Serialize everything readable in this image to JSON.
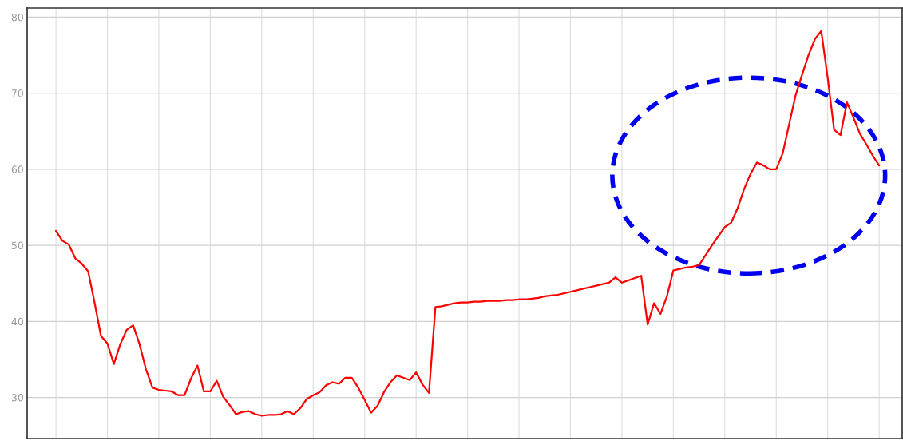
{
  "chart_data": {
    "type": "line",
    "grid": true,
    "marker": "none",
    "line_style": "solid",
    "ylim": [
      24.6,
      81.2
    ],
    "yticks": [
      30,
      40,
      50,
      60,
      70,
      80
    ],
    "categories": [
      null,
      null,
      null,
      null,
      null,
      null,
      null,
      null,
      null,
      null,
      null,
      null,
      null,
      null,
      null,
      null,
      null,
      null,
      null,
      null,
      null,
      null,
      null,
      null,
      null,
      null,
      null,
      null,
      null,
      null,
      null,
      null,
      null,
      null,
      null,
      null,
      null,
      null,
      null,
      null,
      null,
      null,
      null,
      null,
      null,
      null,
      null,
      null,
      null,
      null,
      null,
      null,
      null,
      null,
      null,
      null,
      null,
      null,
      null,
      null,
      null,
      null,
      null,
      null,
      null,
      null,
      null,
      null,
      null,
      null,
      null,
      null,
      null,
      null,
      null,
      null,
      null,
      null,
      null,
      null,
      null,
      null,
      null,
      null,
      null,
      null,
      null,
      null,
      null,
      null,
      null,
      null,
      null,
      null,
      null,
      null,
      null,
      null,
      null,
      null,
      null,
      null,
      null,
      null,
      null,
      null,
      null,
      null,
      null,
      null,
      null,
      null,
      null,
      null,
      null,
      null,
      null,
      null,
      null,
      null,
      null,
      null,
      null,
      null,
      null,
      null,
      null,
      null,
      null
    ],
    "series": [
      {
        "color": "#ff0000",
        "values": [
          51.9,
          50.6,
          50.1,
          48.3,
          47.6,
          46.6,
          42.5,
          38.1,
          37.1,
          34.4,
          37.0,
          38.9,
          39.5,
          37.0,
          33.7,
          31.3,
          31.0,
          30.9,
          30.8,
          30.3,
          30.3,
          32.5,
          34.2,
          30.8,
          30.8,
          32.2,
          30.1,
          29.0,
          27.8,
          28.1,
          28.2,
          27.8,
          27.6,
          27.7,
          27.7,
          27.8,
          28.2,
          27.8,
          28.6,
          29.8,
          30.3,
          30.7,
          31.6,
          32.0,
          31.8,
          32.6,
          32.6,
          31.3,
          29.7,
          28.0,
          28.9,
          30.7,
          32.0,
          32.9,
          32.6,
          32.3,
          33.3,
          31.7,
          30.6,
          41.9,
          42.0,
          42.2,
          42.4,
          42.5,
          42.5,
          42.6,
          42.6,
          42.7,
          42.7,
          42.7,
          42.8,
          42.8,
          42.9,
          42.9,
          43.0,
          43.1,
          43.3,
          43.4,
          43.5,
          43.7,
          43.9,
          44.1,
          44.3,
          44.5,
          44.7,
          44.9,
          45.1,
          45.8,
          45.1,
          45.4,
          45.7,
          46.0,
          39.6,
          42.4,
          41.0,
          43.3,
          46.7,
          46.9,
          47.1,
          47.2,
          47.4,
          48.7,
          50.0,
          51.2,
          52.4,
          53.0,
          54.9,
          57.4,
          59.4,
          60.9,
          60.5,
          60.0,
          60.0,
          62.1,
          65.9,
          69.7,
          72.4,
          75.0,
          77.1,
          78.2,
          72.0,
          65.2,
          64.5,
          68.8,
          66.8,
          64.7,
          63.3,
          61.8,
          60.5
        ]
      }
    ]
  }
}
